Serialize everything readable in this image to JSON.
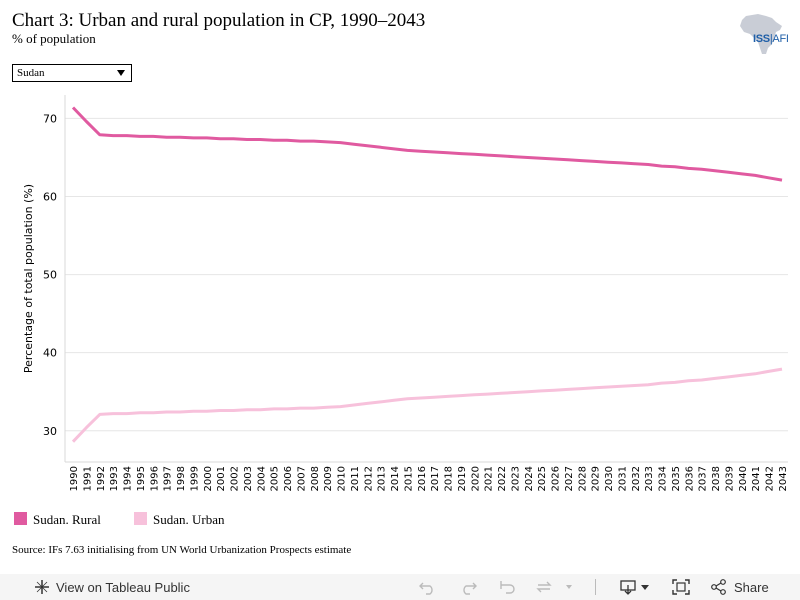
{
  "header": {
    "title": "Chart 3: Urban and rural population in CP, 1990–2043",
    "subtitle": "% of population"
  },
  "logo": {
    "text_bold": "ISS",
    "text_light": "AFI",
    "icon": "africa-map-icon"
  },
  "filter": {
    "selected": "Sudan",
    "icon": "chevron-down-icon"
  },
  "legend": [
    {
      "label": "Sudan. Rural",
      "color": "#e05aa0"
    },
    {
      "label": "Sudan. Urban",
      "color": "#f7c1db"
    }
  ],
  "source": "Source: IFs 7.63 initialising from UN World Urbanization Prospects estimate",
  "toolbar": {
    "view_label": "View on Tableau Public",
    "share_label": "Share",
    "icons": [
      "tableau-logo-icon",
      "undo-icon",
      "redo-icon",
      "revert-icon",
      "refresh-icon",
      "download-icon",
      "fullscreen-icon",
      "share-icon"
    ]
  },
  "chart_data": {
    "type": "line",
    "ylabel": "Percentage of total population (%)",
    "xlabel": "",
    "ylim": [
      26,
      73
    ],
    "yticks": [
      30,
      40,
      50,
      60,
      70
    ],
    "grid": true,
    "x": [
      1990,
      1991,
      1992,
      1993,
      1994,
      1995,
      1996,
      1997,
      1998,
      1999,
      2000,
      2001,
      2002,
      2003,
      2004,
      2005,
      2006,
      2007,
      2008,
      2009,
      2010,
      2011,
      2012,
      2013,
      2014,
      2015,
      2016,
      2017,
      2018,
      2019,
      2020,
      2021,
      2022,
      2023,
      2024,
      2025,
      2026,
      2027,
      2028,
      2029,
      2030,
      2031,
      2032,
      2033,
      2034,
      2035,
      2036,
      2037,
      2038,
      2039,
      2040,
      2041,
      2042,
      2043
    ],
    "series": [
      {
        "name": "Sudan. Rural",
        "color": "#e05aa0",
        "values": [
          71.4,
          69.6,
          67.9,
          67.8,
          67.8,
          67.7,
          67.7,
          67.6,
          67.6,
          67.5,
          67.5,
          67.4,
          67.4,
          67.3,
          67.3,
          67.2,
          67.2,
          67.1,
          67.1,
          67.0,
          66.9,
          66.7,
          66.5,
          66.3,
          66.1,
          65.9,
          65.8,
          65.7,
          65.6,
          65.5,
          65.4,
          65.3,
          65.2,
          65.1,
          65.0,
          64.9,
          64.8,
          64.7,
          64.6,
          64.5,
          64.4,
          64.3,
          64.2,
          64.1,
          63.9,
          63.8,
          63.6,
          63.5,
          63.3,
          63.1,
          62.9,
          62.7,
          62.4,
          62.1
        ]
      },
      {
        "name": "Sudan. Urban",
        "color": "#f7c1db",
        "values": [
          28.6,
          30.4,
          32.1,
          32.2,
          32.2,
          32.3,
          32.3,
          32.4,
          32.4,
          32.5,
          32.5,
          32.6,
          32.6,
          32.7,
          32.7,
          32.8,
          32.8,
          32.9,
          32.9,
          33.0,
          33.1,
          33.3,
          33.5,
          33.7,
          33.9,
          34.1,
          34.2,
          34.3,
          34.4,
          34.5,
          34.6,
          34.7,
          34.8,
          34.9,
          35.0,
          35.1,
          35.2,
          35.3,
          35.4,
          35.5,
          35.6,
          35.7,
          35.8,
          35.9,
          36.1,
          36.2,
          36.4,
          36.5,
          36.7,
          36.9,
          37.1,
          37.3,
          37.6,
          37.9
        ]
      }
    ]
  }
}
